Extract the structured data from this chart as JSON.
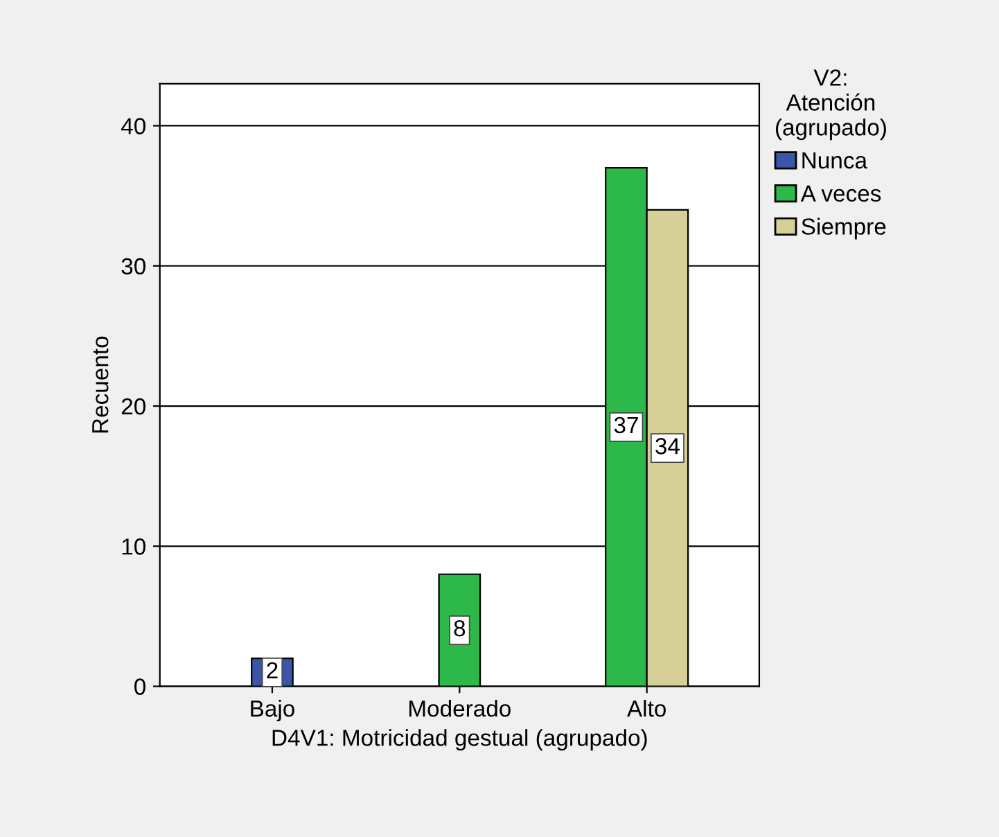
{
  "chart_data": {
    "type": "bar",
    "xlabel": "D4V1: Motricidad gestual (agrupado)",
    "ylabel": "Recuento",
    "legend_title": "V2:\nAtención\n(agrupado)",
    "categories": [
      "Bajo",
      "Moderado",
      "Alto"
    ],
    "series": [
      {
        "name": "Nunca",
        "color": "#3a56a8",
        "values": [
          2,
          null,
          null
        ]
      },
      {
        "name": "A veces",
        "color": "#2db84a",
        "values": [
          null,
          8,
          37
        ]
      },
      {
        "name": "Siempre",
        "color": "#d6cf98",
        "values": [
          null,
          null,
          34
        ]
      }
    ],
    "ylim": [
      0,
      43
    ],
    "yticks": [
      0,
      10,
      20,
      30,
      40
    ],
    "grid": "y",
    "legend": "right",
    "data_labels": true
  }
}
